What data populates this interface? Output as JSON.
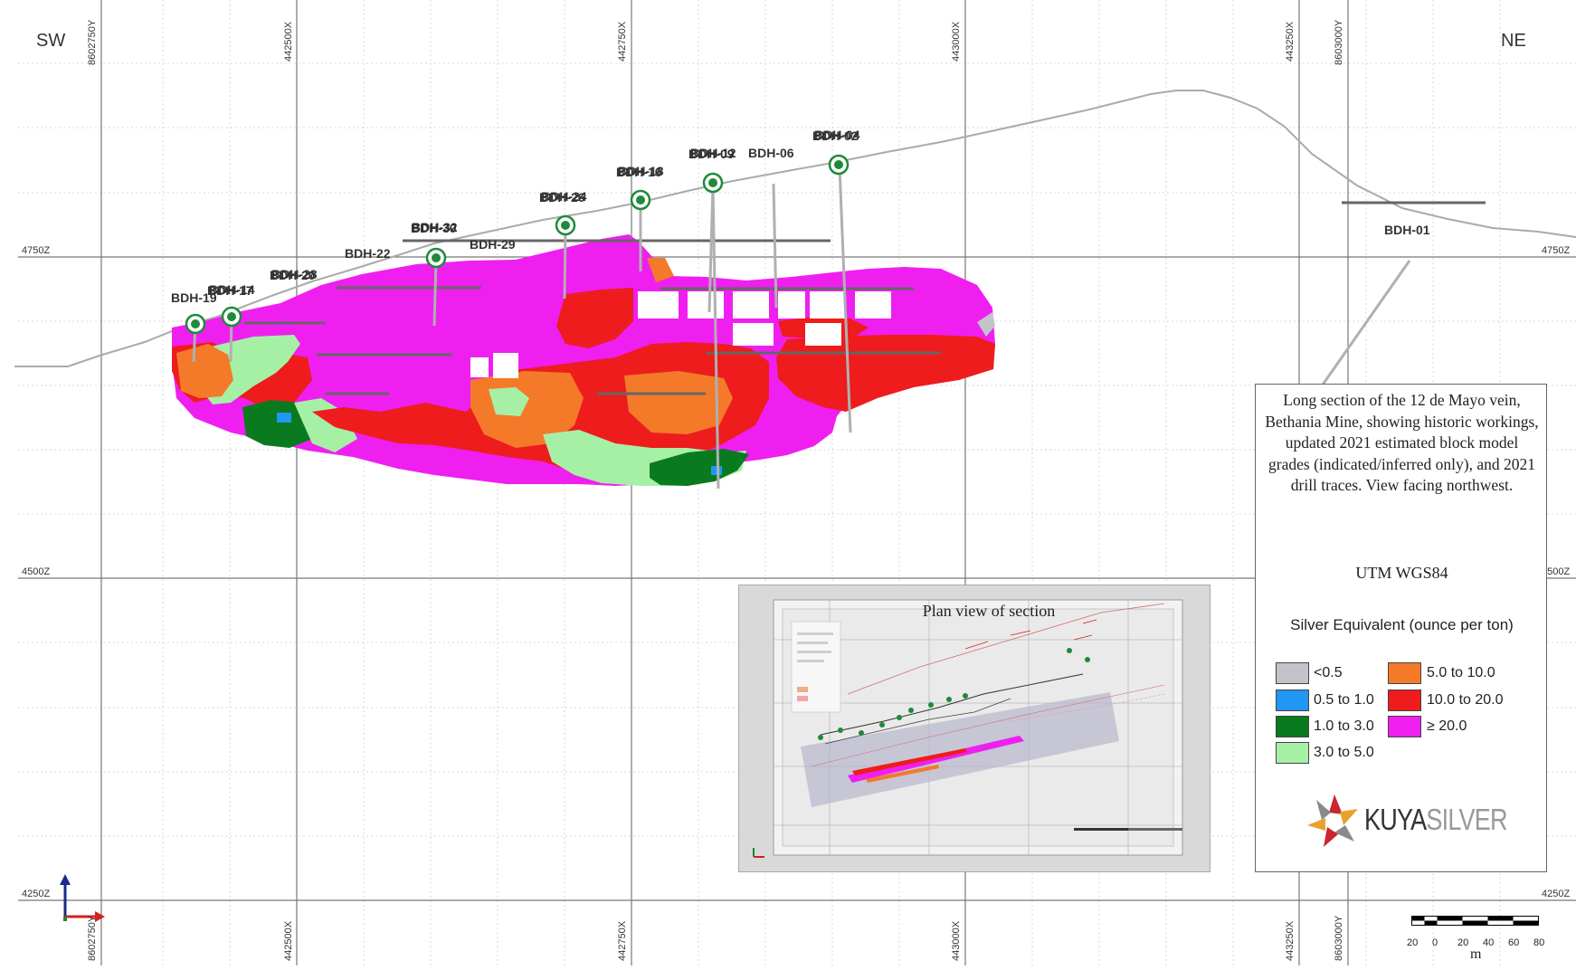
{
  "directions": {
    "left": "SW",
    "right": "NE"
  },
  "easting_labels": [
    "442500X",
    "442750X",
    "443000X",
    "443250X"
  ],
  "northing_labels": [
    "8602750Y",
    "8603000Y"
  ],
  "elevation_labels": [
    "4750Z",
    "4500Z",
    "4250Z"
  ],
  "drill_holes": [
    "BDH-19",
    "BDH-17",
    "BDH-14",
    "BDH-20",
    "BDH-28",
    "BDH-22",
    "BDH-30",
    "BDH-32",
    "BDH-29",
    "BDH-26",
    "BDH-24",
    "BDH-16",
    "BDH-18",
    "BDH-09",
    "BDH-12",
    "BDH-06",
    "BDH-02",
    "BDH-04",
    "BDH-01"
  ],
  "legend": {
    "caption": "Long section of the 12 de Mayo vein, Bethania Mine, showing historic workings, updated 2021 estimated block model grades (indicated/inferred only), and 2021 drill traces. View facing northwest.",
    "projection": "UTM WGS84",
    "title": "Silver Equivalent (ounce per ton)",
    "classes": [
      {
        "label": "<0.5",
        "color": "#c3c3cb"
      },
      {
        "label": "0.5 to 1.0",
        "color": "#2196f3"
      },
      {
        "label": "1.0 to 3.0",
        "color": "#0a7a1f"
      },
      {
        "label": "3.0 to 5.0",
        "color": "#a6f0a6"
      },
      {
        "label": "5.0 to 10.0",
        "color": "#f47a2a"
      },
      {
        "label": "10.0 to 20.0",
        "color": "#ee1c1c"
      },
      {
        "label": "≥ 20.0",
        "color": "#ef1ff0"
      }
    ]
  },
  "logo": {
    "part1": "KUYA",
    "part2": "SILVER"
  },
  "inset_title": "Plan view of section",
  "scale_bar": {
    "ticks": [
      "20",
      "0",
      "20",
      "40",
      "60",
      "80"
    ],
    "unit": "m"
  }
}
